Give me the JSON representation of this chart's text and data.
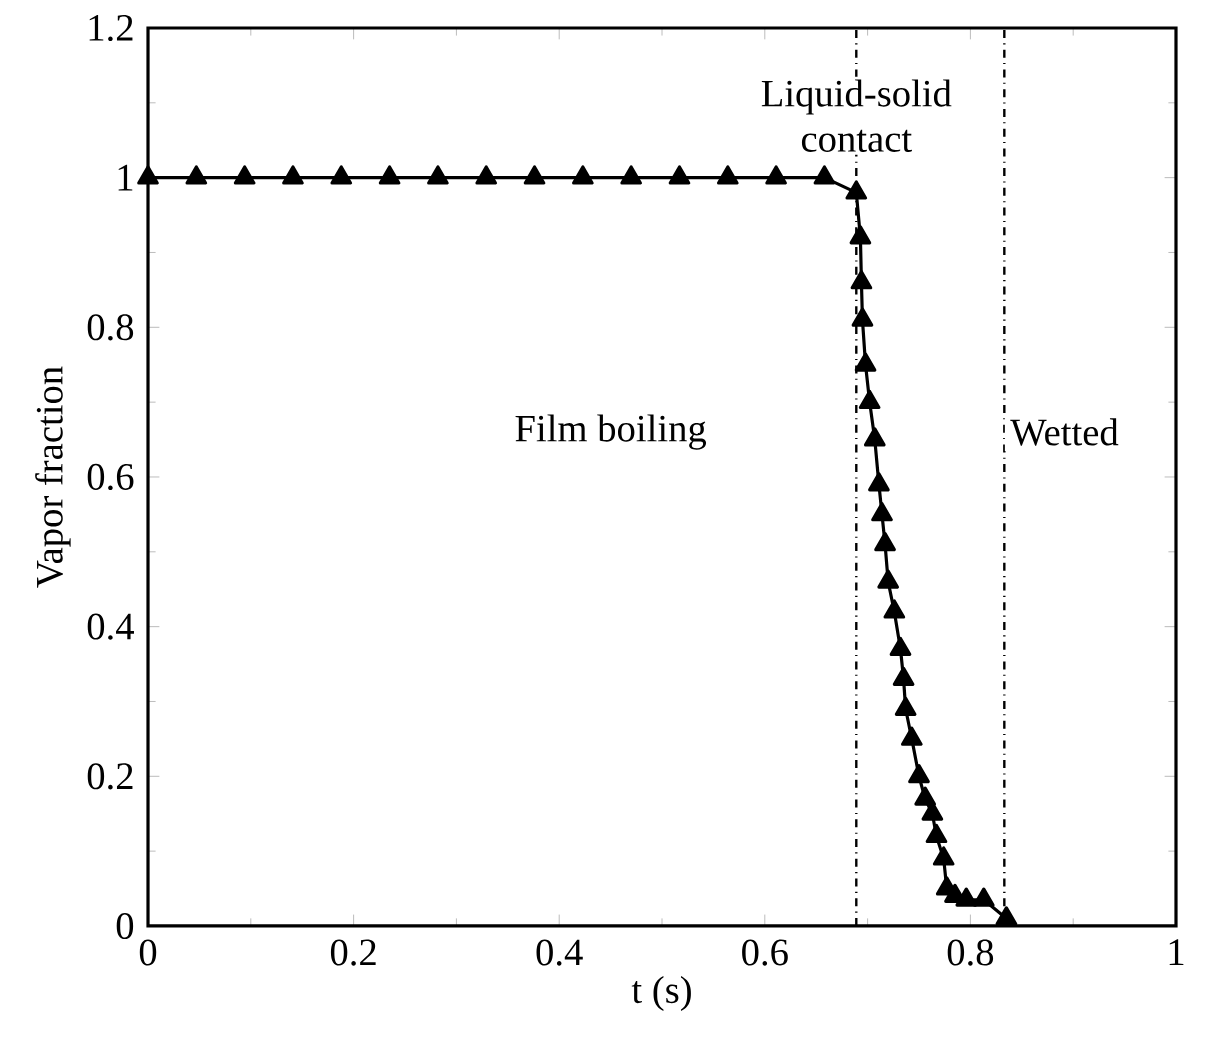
{
  "chart_data": {
    "type": "line",
    "xlabel": "t (s)",
    "ylabel": "Vapor fraction",
    "xlim": [
      0,
      1
    ],
    "ylim": [
      0,
      1.2
    ],
    "xticks": [
      0,
      0.2,
      0.4,
      0.6,
      0.8,
      1
    ],
    "yticks": [
      0,
      0.2,
      0.4,
      0.6,
      0.8,
      1,
      1.2
    ],
    "marker": "triangle",
    "line_style": "solid",
    "series": [
      {
        "color": "#000000",
        "x": [
          0,
          0.047,
          0.094,
          0.141,
          0.188,
          0.235,
          0.282,
          0.329,
          0.376,
          0.423,
          0.47,
          0.517,
          0.564,
          0.611,
          0.658,
          0.689,
          0.693,
          0.694,
          0.695,
          0.698,
          0.702,
          0.707,
          0.711,
          0.714,
          0.717,
          0.72,
          0.726,
          0.732,
          0.735,
          0.737,
          0.743,
          0.75,
          0.756,
          0.763,
          0.767,
          0.774,
          0.777,
          0.785,
          0.796,
          0.813,
          0.835
        ],
        "values": [
          1,
          1,
          1,
          1,
          1,
          1,
          1,
          1,
          1,
          1,
          1,
          1,
          1,
          1,
          1,
          0.98,
          0.92,
          0.86,
          0.81,
          0.75,
          0.7,
          0.65,
          0.59,
          0.55,
          0.51,
          0.46,
          0.42,
          0.37,
          0.33,
          0.29,
          0.25,
          0.2,
          0.17,
          0.15,
          0.12,
          0.09,
          0.05,
          0.04,
          0.035,
          0.035,
          0.01
        ]
      }
    ],
    "ref_lines": [
      {
        "axis": "x",
        "value": 0.689,
        "label": "Liquid-solid contact",
        "line_style": "dashdotted",
        "color": "#000000"
      },
      {
        "axis": "x",
        "value": 0.833,
        "label": "Wetted",
        "line_style": "dashdotted",
        "color": "#000000"
      }
    ],
    "annotations": [
      "Film boiling"
    ]
  }
}
